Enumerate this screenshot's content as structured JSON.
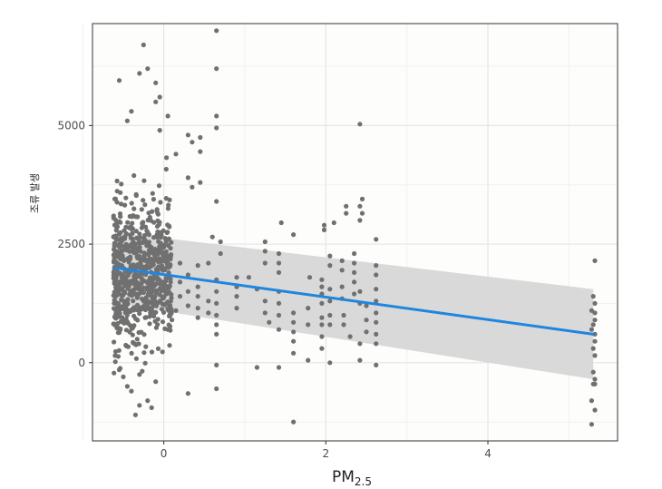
{
  "chart_data": {
    "type": "scatter",
    "xlabel": "PM",
    "xlabel_subscript": "2.5",
    "ylabel": "조류 발생",
    "xlim": [
      -0.88,
      5.6
    ],
    "ylim": [
      -1650,
      7150
    ],
    "x_ticks": [
      0,
      2,
      4
    ],
    "x_tick_labels": [
      "0",
      "2",
      "4"
    ],
    "x_minor": [
      -1,
      1,
      3,
      5
    ],
    "y_ticks": [
      0,
      2500,
      5000
    ],
    "y_tick_labels": [
      "0",
      "2500",
      "5000"
    ],
    "y_minor": [
      -1250,
      1250,
      3750,
      6250
    ],
    "grid": true,
    "colors": {
      "panel": "#fdfdfb",
      "grid_major": "#e6e6e6",
      "grid_minor": "#f1f1f1",
      "points": "#707070",
      "band": "#d6d6d6",
      "line": "#1f85de",
      "frame": "#333333"
    },
    "fit": {
      "x": [
        -0.6,
        5.3
      ],
      "y": [
        2000,
        600
      ],
      "ci_upper": [
        2750,
        1550
      ],
      "ci_lower": [
        1250,
        -350
      ]
    },
    "explicit_points": [
      [
        0.65,
        7000
      ],
      [
        -0.25,
        6700
      ],
      [
        0.65,
        6200
      ],
      [
        -0.2,
        6200
      ],
      [
        -0.3,
        6100
      ],
      [
        -0.1,
        5900
      ],
      [
        -0.55,
        5950
      ],
      [
        -0.05,
        5600
      ],
      [
        -0.1,
        5500
      ],
      [
        -0.4,
        5300
      ],
      [
        0.05,
        5200
      ],
      [
        0.65,
        5200
      ],
      [
        -0.45,
        5100
      ],
      [
        0.65,
        4950
      ],
      [
        2.42,
        5030
      ],
      [
        -0.05,
        4900
      ],
      [
        0.3,
        4800
      ],
      [
        0.45,
        4750
      ],
      [
        0.35,
        4650
      ],
      [
        0.45,
        4450
      ],
      [
        0.15,
        4400
      ],
      [
        0.3,
        3900
      ],
      [
        0.35,
        3700
      ],
      [
        0.45,
        3800
      ],
      [
        0.65,
        3400
      ],
      [
        2.45,
        3450
      ],
      [
        2.42,
        3300
      ],
      [
        2.45,
        3150
      ],
      [
        2.25,
        3300
      ],
      [
        2.25,
        3150
      ],
      [
        2.42,
        3000
      ],
      [
        2.1,
        2950
      ],
      [
        1.98,
        2900
      ],
      [
        1.98,
        2800
      ],
      [
        1.45,
        2950
      ],
      [
        1.6,
        2700
      ],
      [
        2.62,
        2600
      ],
      [
        0.6,
        2650
      ],
      [
        0.7,
        2550
      ],
      [
        1.25,
        2550
      ],
      [
        1.25,
        2350
      ],
      [
        1.42,
        2300
      ],
      [
        1.42,
        2100
      ],
      [
        1.42,
        1900
      ],
      [
        1.25,
        2100
      ],
      [
        2.05,
        2250
      ],
      [
        2.05,
        2050
      ],
      [
        2.2,
        2150
      ],
      [
        2.2,
        1950
      ],
      [
        2.35,
        2300
      ],
      [
        2.35,
        2100
      ],
      [
        2.35,
        1900
      ],
      [
        2.62,
        2050
      ],
      [
        2.62,
        1850
      ],
      [
        1.8,
        1800
      ],
      [
        1.95,
        1750
      ],
      [
        1.95,
        1600
      ],
      [
        1.95,
        1450
      ],
      [
        1.95,
        1250
      ],
      [
        2.05,
        1550
      ],
      [
        2.05,
        1300
      ],
      [
        2.2,
        1600
      ],
      [
        2.2,
        1350
      ],
      [
        2.35,
        1700
      ],
      [
        2.35,
        1450
      ],
      [
        2.42,
        1500
      ],
      [
        2.42,
        1250
      ],
      [
        2.5,
        1200
      ],
      [
        2.62,
        1550
      ],
      [
        2.62,
        1300
      ],
      [
        2.62,
        1050
      ],
      [
        2.62,
        850
      ],
      [
        2.62,
        600
      ],
      [
        2.62,
        400
      ],
      [
        2.5,
        900
      ],
      [
        2.5,
        650
      ],
      [
        2.42,
        400
      ],
      [
        2.3,
        550
      ],
      [
        2.22,
        800
      ],
      [
        2.22,
        1000
      ],
      [
        2.05,
        1000
      ],
      [
        2.05,
        800
      ],
      [
        1.95,
        950
      ],
      [
        1.95,
        800
      ],
      [
        1.95,
        550
      ],
      [
        1.95,
        300
      ],
      [
        1.78,
        1150
      ],
      [
        1.78,
        800
      ],
      [
        1.6,
        1050
      ],
      [
        1.6,
        850
      ],
      [
        1.6,
        650
      ],
      [
        1.6,
        450
      ],
      [
        1.6,
        200
      ],
      [
        1.42,
        1500
      ],
      [
        1.42,
        1250
      ],
      [
        1.42,
        1000
      ],
      [
        1.42,
        700
      ],
      [
        1.25,
        1300
      ],
      [
        1.25,
        1050
      ],
      [
        1.3,
        850
      ],
      [
        1.05,
        1800
      ],
      [
        1.15,
        1550
      ],
      [
        0.9,
        1800
      ],
      [
        0.9,
        1600
      ],
      [
        0.9,
        1400
      ],
      [
        0.9,
        1150
      ],
      [
        0.65,
        1750
      ],
      [
        0.65,
        1500
      ],
      [
        0.65,
        1250
      ],
      [
        0.65,
        1000
      ],
      [
        0.65,
        800
      ],
      [
        0.65,
        600
      ],
      [
        0.55,
        2100
      ],
      [
        0.55,
        1300
      ],
      [
        0.55,
        1050
      ],
      [
        0.7,
        2300
      ],
      [
        0.42,
        2050
      ],
      [
        0.42,
        1600
      ],
      [
        0.42,
        1400
      ],
      [
        0.42,
        1150
      ],
      [
        0.42,
        950
      ],
      [
        0.3,
        1850
      ],
      [
        0.3,
        1500
      ],
      [
        0.3,
        1200
      ],
      [
        0.2,
        2100
      ],
      [
        0.2,
        1700
      ],
      [
        0.2,
        1400
      ],
      [
        0.15,
        1100
      ],
      [
        0.1,
        900
      ],
      [
        0.05,
        700
      ],
      [
        2.05,
        0
      ],
      [
        2.42,
        50
      ],
      [
        2.62,
        -50
      ],
      [
        1.78,
        50
      ],
      [
        1.42,
        -100
      ],
      [
        1.15,
        -100
      ],
      [
        0.65,
        -50
      ],
      [
        0.65,
        -550
      ],
      [
        0.3,
        -650
      ],
      [
        1.6,
        -1250
      ],
      [
        5.32,
        2150
      ],
      [
        5.3,
        1400
      ],
      [
        5.32,
        1250
      ],
      [
        5.32,
        1050
      ],
      [
        5.32,
        900
      ],
      [
        5.3,
        800
      ],
      [
        5.32,
        600
      ],
      [
        5.32,
        450
      ],
      [
        5.3,
        300
      ],
      [
        5.32,
        150
      ],
      [
        5.28,
        1100
      ],
      [
        5.28,
        700
      ],
      [
        5.3,
        -200
      ],
      [
        5.32,
        -350
      ],
      [
        5.3,
        -450
      ],
      [
        5.32,
        -450
      ],
      [
        5.28,
        -800
      ],
      [
        5.32,
        -1000
      ],
      [
        5.28,
        -1300
      ],
      [
        -0.5,
        -300
      ],
      [
        -0.4,
        -600
      ],
      [
        -0.3,
        -900
      ],
      [
        -0.35,
        -1100
      ],
      [
        -0.2,
        -800
      ],
      [
        -0.15,
        -950
      ],
      [
        -0.1,
        -400
      ],
      [
        -0.55,
        -150
      ],
      [
        -0.3,
        -250
      ],
      [
        -0.45,
        -500
      ]
    ],
    "dense_cluster": {
      "x_range": [
        -0.62,
        0.1
      ],
      "y_center": 1850,
      "y_spread": 850,
      "count": 700,
      "seed": 7
    }
  }
}
